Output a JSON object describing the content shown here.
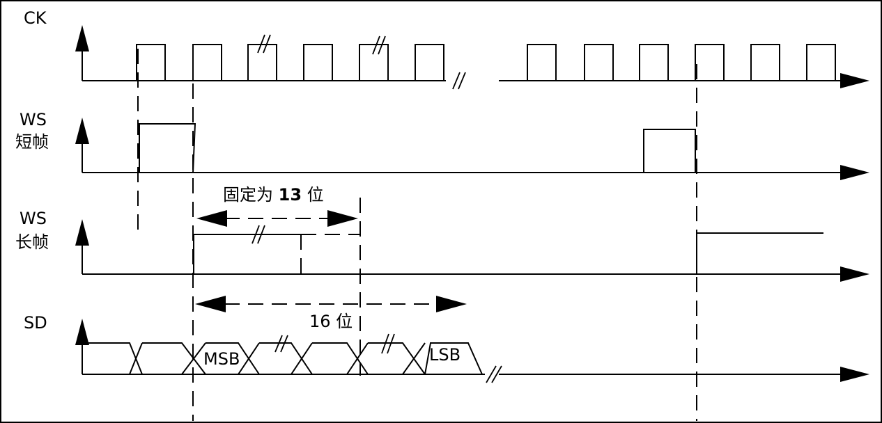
{
  "signals": {
    "ck": {
      "label": "CK"
    },
    "ws_short": {
      "label": "WS",
      "sublabel": "短帧"
    },
    "ws_long": {
      "label": "WS",
      "sublabel": "长帧"
    },
    "sd": {
      "label": "SD"
    }
  },
  "annotations": {
    "fixed_13": {
      "prefix": "固定为 ",
      "number": "13",
      "suffix": " 位"
    },
    "bits_16": "16 位",
    "msb": "MSB",
    "lsb": "LSB"
  }
}
